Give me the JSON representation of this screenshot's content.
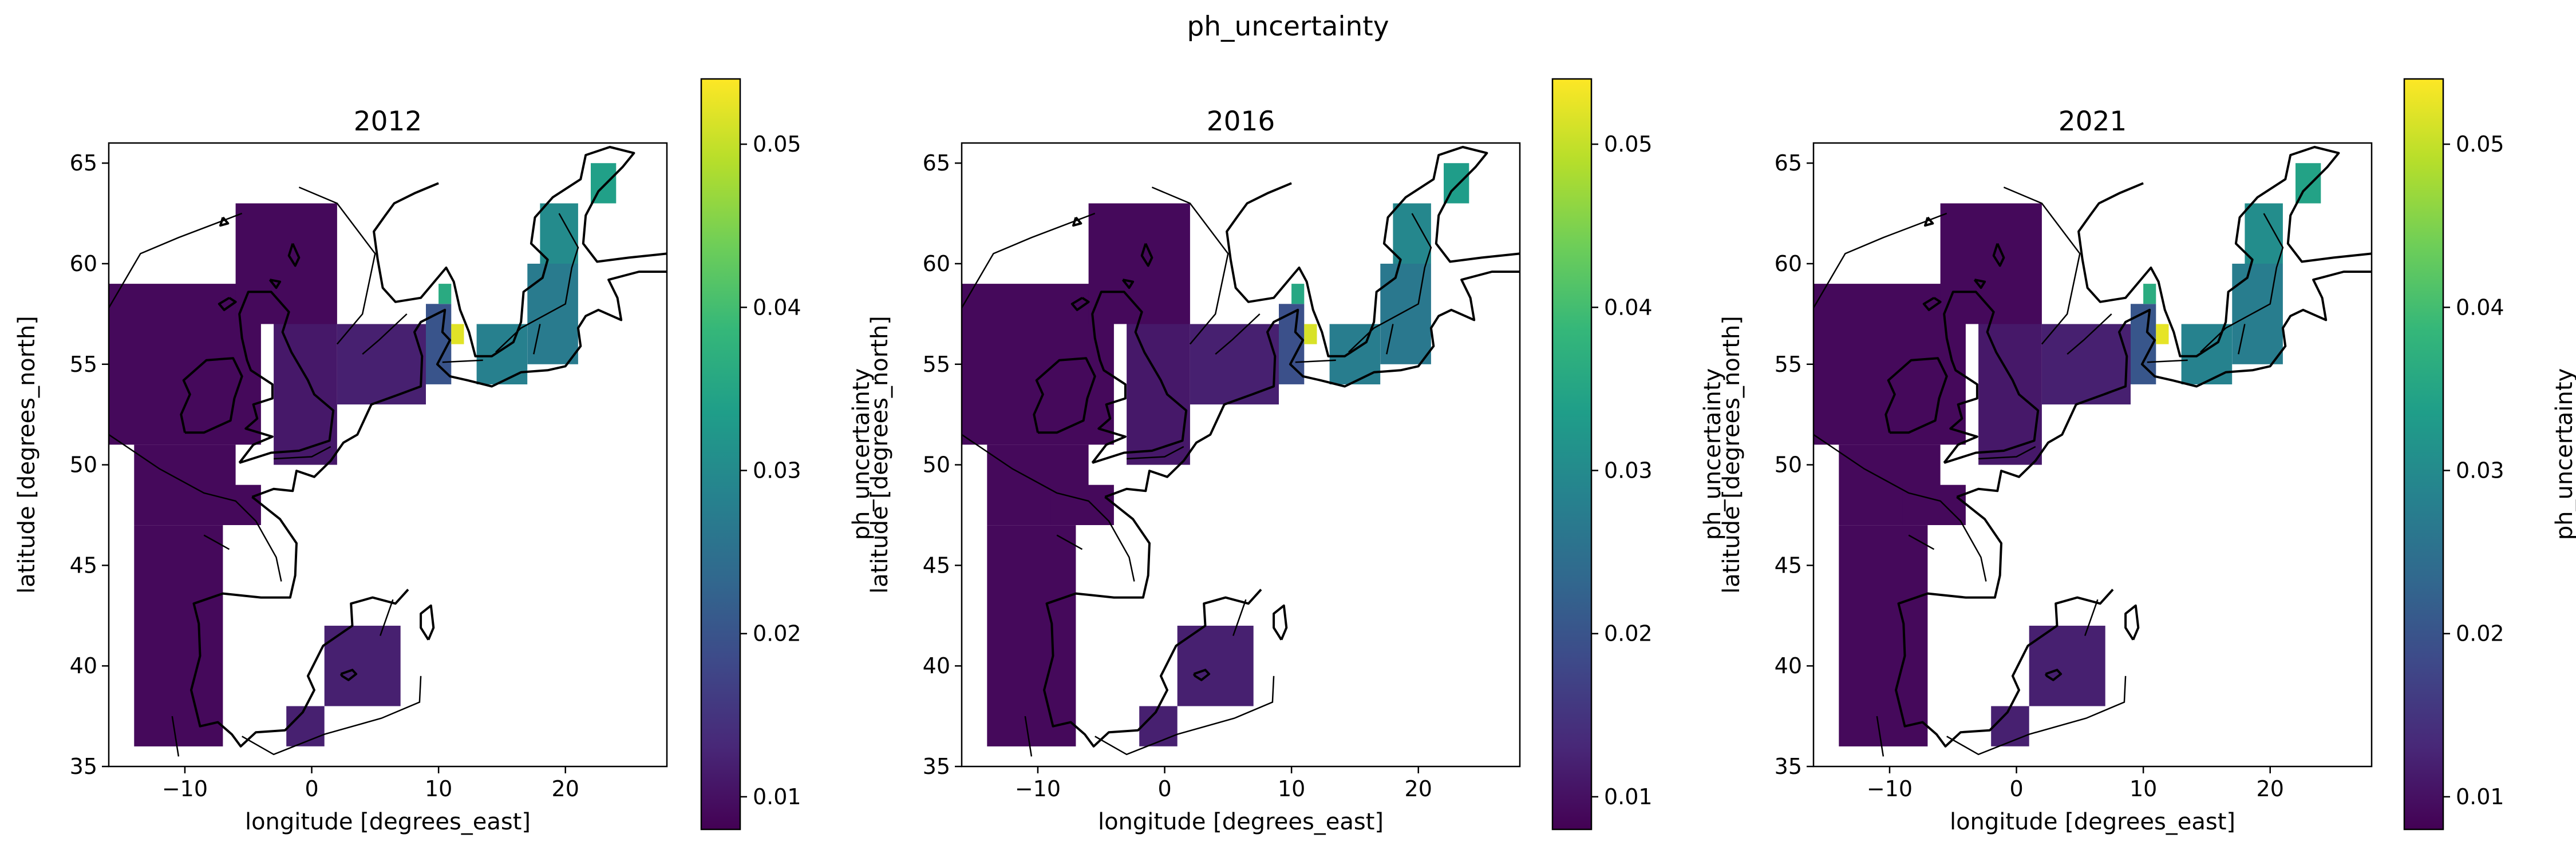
{
  "figure": {
    "title": "ph_uncertainty"
  },
  "panel_titles": [
    "2012",
    "2016",
    "2021"
  ],
  "axes": {
    "xlabel": "longitude [degrees_east]",
    "ylabel": "latitude [degrees_north]",
    "xlim": [
      -16,
      28
    ],
    "ylim": [
      35,
      66
    ],
    "xticks": [
      -10,
      0,
      10,
      20
    ],
    "yticks": [
      35,
      40,
      45,
      50,
      55,
      60,
      65
    ],
    "xtick_labels": [
      "−10",
      "0",
      "10",
      "20"
    ],
    "ytick_labels": [
      "35",
      "40",
      "45",
      "50",
      "55",
      "60",
      "65"
    ]
  },
  "colorbar": {
    "label": "ph_uncertainty",
    "colormap": "viridis",
    "range": [
      0.008,
      0.054
    ],
    "ticks": [
      0.01,
      0.02,
      0.03,
      0.04,
      0.05
    ],
    "tick_labels": [
      "0.01",
      "0.02",
      "0.03",
      "0.04",
      "0.05"
    ],
    "stops": [
      "#440154",
      "#482878",
      "#3e4989",
      "#31688e",
      "#26828e",
      "#1f9e89",
      "#35b779",
      "#6ece58",
      "#b5de2b",
      "#fde725"
    ]
  },
  "chart_data": {
    "type": "heatmap",
    "cell_size_deg": 1,
    "variable": "ph_uncertainty",
    "value_range": [
      0.008,
      0.054
    ],
    "base_value": 0.009,
    "regions": [
      {
        "lon": [
          -16,
          -4
        ],
        "lat": [
          51,
          59
        ],
        "value": 0.009
      },
      {
        "lon": [
          -6,
          2
        ],
        "lat": [
          57,
          63
        ],
        "value": 0.009
      },
      {
        "lon": [
          -14,
          -6
        ],
        "lat": [
          47,
          51
        ],
        "value": 0.009
      },
      {
        "lon": [
          -14,
          -7
        ],
        "lat": [
          36,
          47
        ],
        "value": 0.009
      },
      {
        "lon": [
          -9,
          -4
        ],
        "lat": [
          47,
          49
        ],
        "value": 0.009
      },
      {
        "lon": [
          -3,
          2
        ],
        "lat": [
          50,
          57
        ],
        "value": 0.011
      },
      {
        "lon": [
          2,
          9
        ],
        "lat": [
          53,
          57
        ],
        "value": 0.012
      },
      {
        "lon": [
          1,
          7
        ],
        "lat": [
          38,
          42
        ],
        "value": 0.012
      },
      {
        "lon": [
          -2,
          1
        ],
        "lat": [
          36,
          38
        ],
        "value": 0.012
      },
      {
        "lon": [
          9,
          11
        ],
        "lat": [
          54,
          58
        ],
        "value": 0.02
      },
      {
        "lon": [
          13,
          17
        ],
        "lat": [
          54,
          57
        ],
        "value": 0.028
      },
      {
        "lon": [
          17,
          21
        ],
        "lat": [
          55,
          60
        ],
        "value": 0.027
      },
      {
        "lon": [
          18,
          21
        ],
        "lat": [
          60,
          63
        ],
        "value": 0.03
      },
      {
        "lon": [
          22,
          24
        ],
        "lat": [
          63,
          65
        ],
        "value": 0.034
      },
      {
        "lon": [
          11,
          12
        ],
        "lat": [
          56,
          57
        ],
        "value": 0.052
      },
      {
        "lon": [
          10,
          11
        ],
        "lat": [
          58,
          59
        ],
        "value": 0.036
      }
    ]
  }
}
